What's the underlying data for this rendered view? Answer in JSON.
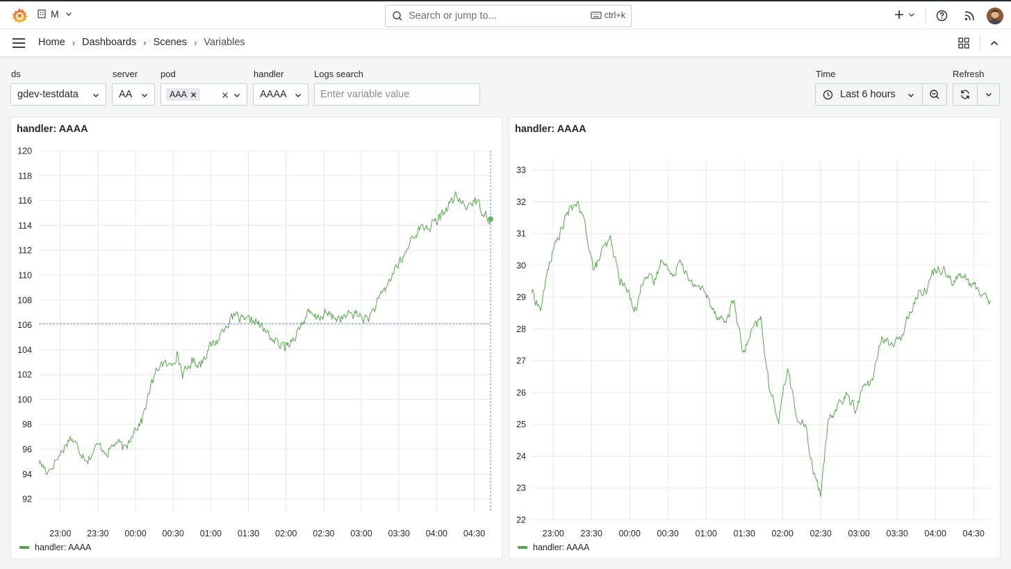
{
  "topbar": {
    "org_label": "M",
    "search_placeholder": "Search or jump to...",
    "search_shortcut": "ctrl+k"
  },
  "breadcrumb": [
    {
      "label": "Home"
    },
    {
      "label": "Dashboards"
    },
    {
      "label": "Scenes"
    },
    {
      "label": "Variables"
    }
  ],
  "variables": {
    "ds": {
      "label": "ds",
      "value": "gdev-testdata"
    },
    "server": {
      "label": "server",
      "value": "AA"
    },
    "pod": {
      "label": "pod",
      "chip": "AAA"
    },
    "handler": {
      "label": "handler",
      "value": "AAAA"
    },
    "logs": {
      "label": "Logs search",
      "placeholder": "Enter variable value"
    },
    "time": {
      "label": "Time",
      "value": "Last 6 hours"
    },
    "refresh": {
      "label": "Refresh"
    }
  },
  "colors": {
    "series": "#56a64b",
    "crosshair": "#3d71d9"
  },
  "panels": [
    {
      "title": "handler: AAAA",
      "legend": "handler: AAAA"
    },
    {
      "title": "handler: AAAA",
      "legend": "handler: AAAA"
    }
  ],
  "chart_data": [
    {
      "type": "line",
      "x_ticks": [
        "23:00",
        "23:30",
        "00:00",
        "00:30",
        "01:00",
        "01:30",
        "02:00",
        "02:30",
        "03:00",
        "03:30",
        "04:00",
        "04:30"
      ],
      "y_ticks": [
        92,
        94,
        96,
        98,
        100,
        102,
        104,
        106,
        108,
        110,
        112,
        114,
        116,
        118,
        120
      ],
      "ylim": [
        91,
        120
      ],
      "x_range": [
        "22:43",
        "04:43"
      ],
      "grid": true,
      "legend_placement": "bottom-left",
      "crosshair": {
        "x": "04:43",
        "y": 106.1
      },
      "series": [
        {
          "name": "handler: AAAA",
          "points": [
            [
              "22:43",
              95.0
            ],
            [
              "22:50",
              94.2
            ],
            [
              "23:00",
              95.6
            ],
            [
              "23:08",
              97.0
            ],
            [
              "23:15",
              96.0
            ],
            [
              "23:22",
              95.2
            ],
            [
              "23:30",
              96.3
            ],
            [
              "23:38",
              95.8
            ],
            [
              "23:45",
              96.6
            ],
            [
              "23:52",
              95.9
            ],
            [
              "23:58",
              97.5
            ],
            [
              "00:05",
              98.3
            ],
            [
              "00:12",
              101.0
            ],
            [
              "00:20",
              103.0
            ],
            [
              "00:27",
              102.6
            ],
            [
              "00:33",
              103.7
            ],
            [
              "00:38",
              101.9
            ],
            [
              "00:45",
              103.1
            ],
            [
              "00:52",
              102.9
            ],
            [
              "00:58",
              104.1
            ],
            [
              "01:05",
              104.7
            ],
            [
              "01:12",
              106.1
            ],
            [
              "01:20",
              106.7
            ],
            [
              "01:27",
              106.2
            ],
            [
              "01:35",
              106.4
            ],
            [
              "01:42",
              105.6
            ],
            [
              "01:50",
              104.8
            ],
            [
              "01:57",
              104.2
            ],
            [
              "02:02",
              104.5
            ],
            [
              "02:10",
              105.6
            ],
            [
              "02:17",
              106.9
            ],
            [
              "02:24",
              106.5
            ],
            [
              "02:31",
              106.9
            ],
            [
              "02:38",
              106.6
            ],
            [
              "02:45",
              106.5
            ],
            [
              "02:52",
              106.9
            ],
            [
              "02:58",
              106.8
            ],
            [
              "03:05",
              106.4
            ],
            [
              "03:12",
              107.6
            ],
            [
              "03:20",
              109.0
            ],
            [
              "03:27",
              110.6
            ],
            [
              "03:34",
              111.4
            ],
            [
              "03:41",
              113.2
            ],
            [
              "03:48",
              113.8
            ],
            [
              "03:55",
              113.9
            ],
            [
              "04:02",
              114.5
            ],
            [
              "04:09",
              115.6
            ],
            [
              "04:16",
              116.3
            ],
            [
              "04:23",
              115.4
            ],
            [
              "04:30",
              116.1
            ],
            [
              "04:36",
              115.3
            ],
            [
              "04:43",
              114.5
            ]
          ]
        }
      ]
    },
    {
      "type": "line",
      "x_ticks": [
        "23:00",
        "23:30",
        "00:00",
        "00:30",
        "01:00",
        "01:30",
        "02:00",
        "02:30",
        "03:00",
        "03:30",
        "04:00",
        "04:30"
      ],
      "y_ticks": [
        22,
        23,
        24,
        25,
        26,
        27,
        28,
        29,
        30,
        31,
        32,
        33
      ],
      "ylim": [
        22,
        33.3
      ],
      "x_range": [
        "22:43",
        "04:43"
      ],
      "grid": true,
      "legend_placement": "bottom-left",
      "series": [
        {
          "name": "handler: AAAA",
          "points": [
            [
              "22:43",
              29.2
            ],
            [
              "22:50",
              28.6
            ],
            [
              "22:57",
              30.1
            ],
            [
              "23:04",
              30.9
            ],
            [
              "23:11",
              31.6
            ],
            [
              "23:18",
              32.0
            ],
            [
              "23:25",
              31.3
            ],
            [
              "23:32",
              29.8
            ],
            [
              "23:38",
              30.4
            ],
            [
              "23:45",
              30.8
            ],
            [
              "23:52",
              29.6
            ],
            [
              "23:58",
              29.2
            ],
            [
              "00:05",
              28.6
            ],
            [
              "00:12",
              29.8
            ],
            [
              "00:19",
              29.4
            ],
            [
              "00:26",
              30.3
            ],
            [
              "00:33",
              29.6
            ],
            [
              "00:40",
              30.3
            ],
            [
              "00:47",
              29.4
            ],
            [
              "00:54",
              29.4
            ],
            [
              "01:01",
              29.0
            ],
            [
              "01:08",
              28.5
            ],
            [
              "01:15",
              28.2
            ],
            [
              "01:22",
              28.9
            ],
            [
              "01:29",
              27.2
            ],
            [
              "01:36",
              27.9
            ],
            [
              "01:43",
              28.3
            ],
            [
              "01:50",
              26.0
            ],
            [
              "01:57",
              25.2
            ],
            [
              "02:04",
              26.8
            ],
            [
              "02:11",
              25.2
            ],
            [
              "02:18",
              24.9
            ],
            [
              "02:25",
              23.4
            ],
            [
              "02:30",
              22.9
            ],
            [
              "02:36",
              25.0
            ],
            [
              "02:43",
              25.6
            ],
            [
              "02:50",
              25.9
            ],
            [
              "02:57",
              25.5
            ],
            [
              "03:04",
              26.2
            ],
            [
              "03:11",
              26.4
            ],
            [
              "03:18",
              27.8
            ],
            [
              "03:25",
              27.5
            ],
            [
              "03:32",
              27.6
            ],
            [
              "03:39",
              28.5
            ],
            [
              "03:46",
              29.1
            ],
            [
              "03:53",
              29.3
            ],
            [
              "04:00",
              29.9
            ],
            [
              "04:07",
              29.9
            ],
            [
              "04:14",
              29.5
            ],
            [
              "04:21",
              29.7
            ],
            [
              "04:28",
              29.4
            ],
            [
              "04:35",
              29.2
            ],
            [
              "04:43",
              28.9
            ]
          ]
        }
      ]
    }
  ]
}
